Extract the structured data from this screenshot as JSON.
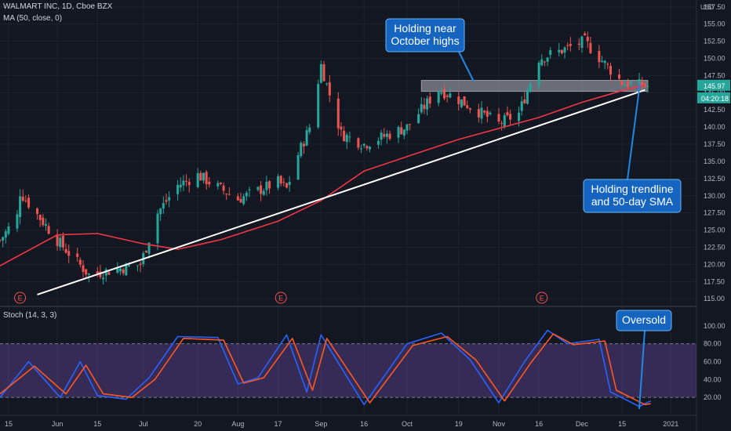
{
  "header": {
    "symbol_line": "WALMART INC, 1D, Cboe BZX",
    "ma_line": "MA (50, close, 0)",
    "stoch_line": "Stoch (14, 3, 3)",
    "currency": "USD"
  },
  "price_axis": {
    "ticks": [
      "157.50",
      "155.00",
      "152.50",
      "150.00",
      "147.50",
      "145.00",
      "142.50",
      "140.00",
      "137.50",
      "135.00",
      "132.50",
      "130.00",
      "127.50",
      "125.00",
      "122.50",
      "120.00",
      "117.50",
      "115.00"
    ],
    "last_price": "145.97",
    "countdown": "04:20:18"
  },
  "stoch_axis": {
    "ticks": [
      "100.00",
      "80.00",
      "60.00",
      "40.00",
      "20.00"
    ]
  },
  "time_axis": {
    "labels": [
      "15",
      "Jun",
      "15",
      "Jul",
      "20",
      "Aug",
      "17",
      "Sep",
      "16",
      "Oct",
      "19",
      "Nov",
      "16",
      "Dec",
      "15",
      "2021"
    ]
  },
  "earnings_markers": [
    "E",
    "E",
    "E"
  ],
  "annotations": {
    "top": [
      "Holding near",
      "October highs"
    ],
    "right": [
      "Holding trendline",
      "and 50-day SMA"
    ],
    "stoch": [
      "Oversold"
    ]
  },
  "colors": {
    "background": "#131722",
    "up": "#26a69a",
    "down": "#ef5350",
    "ma": "#f23645",
    "stoch_k": "#2962ff",
    "stoch_d": "#ff5722",
    "stoch_band": "#7e57c2",
    "callout": "#2962ff",
    "trendline": "#ffffff"
  },
  "chart_data": [
    {
      "type": "candlestick",
      "title": "WALMART INC, 1D, Cboe BZX",
      "ylim": [
        114.0,
        158.5
      ],
      "x": [
        "2020-05-15",
        "2020-06-01",
        "2020-06-15",
        "2020-07-01",
        "2020-07-20",
        "2020-08-03",
        "2020-08-17",
        "2020-09-01",
        "2020-09-16",
        "2020-10-01",
        "2020-10-19",
        "2020-11-02",
        "2020-11-16",
        "2020-12-01",
        "2020-12-15",
        "2021-01-01"
      ],
      "ohlc_anchors": [
        {
          "date": "2020-05-12",
          "close": 123.5
        },
        {
          "date": "2020-05-18",
          "close": 127.0
        },
        {
          "date": "2020-05-19",
          "close": 130.5
        },
        {
          "date": "2020-06-01",
          "close": 123.5
        },
        {
          "date": "2020-06-12",
          "close": 118.5
        },
        {
          "date": "2020-06-30",
          "close": 120.0
        },
        {
          "date": "2020-07-06",
          "close": 127.5
        },
        {
          "date": "2020-07-13",
          "close": 131.5
        },
        {
          "date": "2020-07-20",
          "close": 133.0
        },
        {
          "date": "2020-08-03",
          "close": 129.5
        },
        {
          "date": "2020-08-17",
          "close": 132.0
        },
        {
          "date": "2020-08-20",
          "close": 131.0
        },
        {
          "date": "2020-08-24",
          "close": 136.0
        },
        {
          "date": "2020-08-28",
          "close": 140.0
        },
        {
          "date": "2020-09-01",
          "close": 149.0
        },
        {
          "date": "2020-09-08",
          "close": 139.0
        },
        {
          "date": "2020-09-16",
          "close": 137.5
        },
        {
          "date": "2020-10-01",
          "close": 140.0
        },
        {
          "date": "2020-10-12",
          "close": 145.5
        },
        {
          "date": "2020-10-19",
          "close": 144.0
        },
        {
          "date": "2020-11-02",
          "close": 140.5
        },
        {
          "date": "2020-11-09",
          "close": 142.0
        },
        {
          "date": "2020-11-16",
          "close": 150.0
        },
        {
          "date": "2020-11-23",
          "close": 151.0
        },
        {
          "date": "2020-12-02",
          "close": 152.5
        },
        {
          "date": "2020-12-04",
          "close": 151.5
        },
        {
          "date": "2020-12-15",
          "close": 146.5
        },
        {
          "date": "2020-12-23",
          "close": 146.0
        }
      ],
      "last_close": 145.97,
      "series": [
        {
          "name": "MA (50, close, 0)",
          "points": [
            {
              "date": "2020-05-12",
              "value": 119.8
            },
            {
              "date": "2020-06-01",
              "value": 124.3
            },
            {
              "date": "2020-06-15",
              "value": 124.5
            },
            {
              "date": "2020-07-01",
              "value": 123.0
            },
            {
              "date": "2020-07-13",
              "value": 122.2
            },
            {
              "date": "2020-07-28",
              "value": 123.6
            },
            {
              "date": "2020-08-17",
              "value": 126.3
            },
            {
              "date": "2020-09-01",
              "value": 129.3
            },
            {
              "date": "2020-09-16",
              "value": 133.6
            },
            {
              "date": "2020-10-01",
              "value": 135.7
            },
            {
              "date": "2020-10-19",
              "value": 138.2
            },
            {
              "date": "2020-11-02",
              "value": 139.8
            },
            {
              "date": "2020-11-16",
              "value": 141.4
            },
            {
              "date": "2020-12-01",
              "value": 143.6
            },
            {
              "date": "2020-12-15",
              "value": 145.3
            },
            {
              "date": "2020-12-23",
              "value": 146.1
            }
          ]
        }
      ],
      "annotations": [
        {
          "type": "trendline",
          "from": {
            "date": "2020-05-25",
            "value": 115.6
          },
          "to": {
            "date": "2020-12-23",
            "value": 145.4
          }
        },
        {
          "type": "zone",
          "from_date": "2020-10-06",
          "to_date": "2020-12-24",
          "low": 145.2,
          "high": 146.8
        }
      ]
    },
    {
      "type": "line",
      "title": "Stoch (14, 3, 3)",
      "ylim": [
        0,
        120
      ],
      "bands": [
        20,
        80
      ],
      "series": [
        {
          "name": "%K",
          "points": [
            {
              "date": "2020-05-12",
              "value": 20
            },
            {
              "date": "2020-05-22",
              "value": 60
            },
            {
              "date": "2020-06-02",
              "value": 20
            },
            {
              "date": "2020-06-09",
              "value": 60
            },
            {
              "date": "2020-06-15",
              "value": 22
            },
            {
              "date": "2020-06-25",
              "value": 18
            },
            {
              "date": "2020-07-03",
              "value": 42
            },
            {
              "date": "2020-07-13",
              "value": 88
            },
            {
              "date": "2020-07-27",
              "value": 87
            },
            {
              "date": "2020-08-03",
              "value": 35
            },
            {
              "date": "2020-08-10",
              "value": 42
            },
            {
              "date": "2020-08-20",
              "value": 90
            },
            {
              "date": "2020-08-27",
              "value": 26
            },
            {
              "date": "2020-09-01",
              "value": 90
            },
            {
              "date": "2020-09-16",
              "value": 12
            },
            {
              "date": "2020-10-01",
              "value": 80
            },
            {
              "date": "2020-10-13",
              "value": 92
            },
            {
              "date": "2020-10-23",
              "value": 62
            },
            {
              "date": "2020-11-02",
              "value": 14
            },
            {
              "date": "2020-11-11",
              "value": 60
            },
            {
              "date": "2020-11-19",
              "value": 95
            },
            {
              "date": "2020-11-26",
              "value": 80
            },
            {
              "date": "2020-12-07",
              "value": 85
            },
            {
              "date": "2020-12-11",
              "value": 26
            },
            {
              "date": "2020-12-21",
              "value": 10
            },
            {
              "date": "2020-12-25",
              "value": 16
            }
          ]
        },
        {
          "name": "%D",
          "points": [
            {
              "date": "2020-05-12",
              "value": 24
            },
            {
              "date": "2020-05-24",
              "value": 55
            },
            {
              "date": "2020-06-04",
              "value": 24
            },
            {
              "date": "2020-06-11",
              "value": 56
            },
            {
              "date": "2020-06-17",
              "value": 24
            },
            {
              "date": "2020-06-27",
              "value": 20
            },
            {
              "date": "2020-07-05",
              "value": 40
            },
            {
              "date": "2020-07-15",
              "value": 86
            },
            {
              "date": "2020-07-29",
              "value": 84
            },
            {
              "date": "2020-08-05",
              "value": 36
            },
            {
              "date": "2020-08-12",
              "value": 42
            },
            {
              "date": "2020-08-22",
              "value": 86
            },
            {
              "date": "2020-08-29",
              "value": 28
            },
            {
              "date": "2020-09-03",
              "value": 86
            },
            {
              "date": "2020-09-18",
              "value": 14
            },
            {
              "date": "2020-10-03",
              "value": 78
            },
            {
              "date": "2020-10-15",
              "value": 88
            },
            {
              "date": "2020-10-25",
              "value": 62
            },
            {
              "date": "2020-11-04",
              "value": 16
            },
            {
              "date": "2020-11-13",
              "value": 58
            },
            {
              "date": "2020-11-21",
              "value": 91
            },
            {
              "date": "2020-11-28",
              "value": 79
            },
            {
              "date": "2020-12-09",
              "value": 83
            },
            {
              "date": "2020-12-13",
              "value": 28
            },
            {
              "date": "2020-12-23",
              "value": 12
            },
            {
              "date": "2020-12-25",
              "value": 13
            }
          ]
        }
      ]
    }
  ]
}
